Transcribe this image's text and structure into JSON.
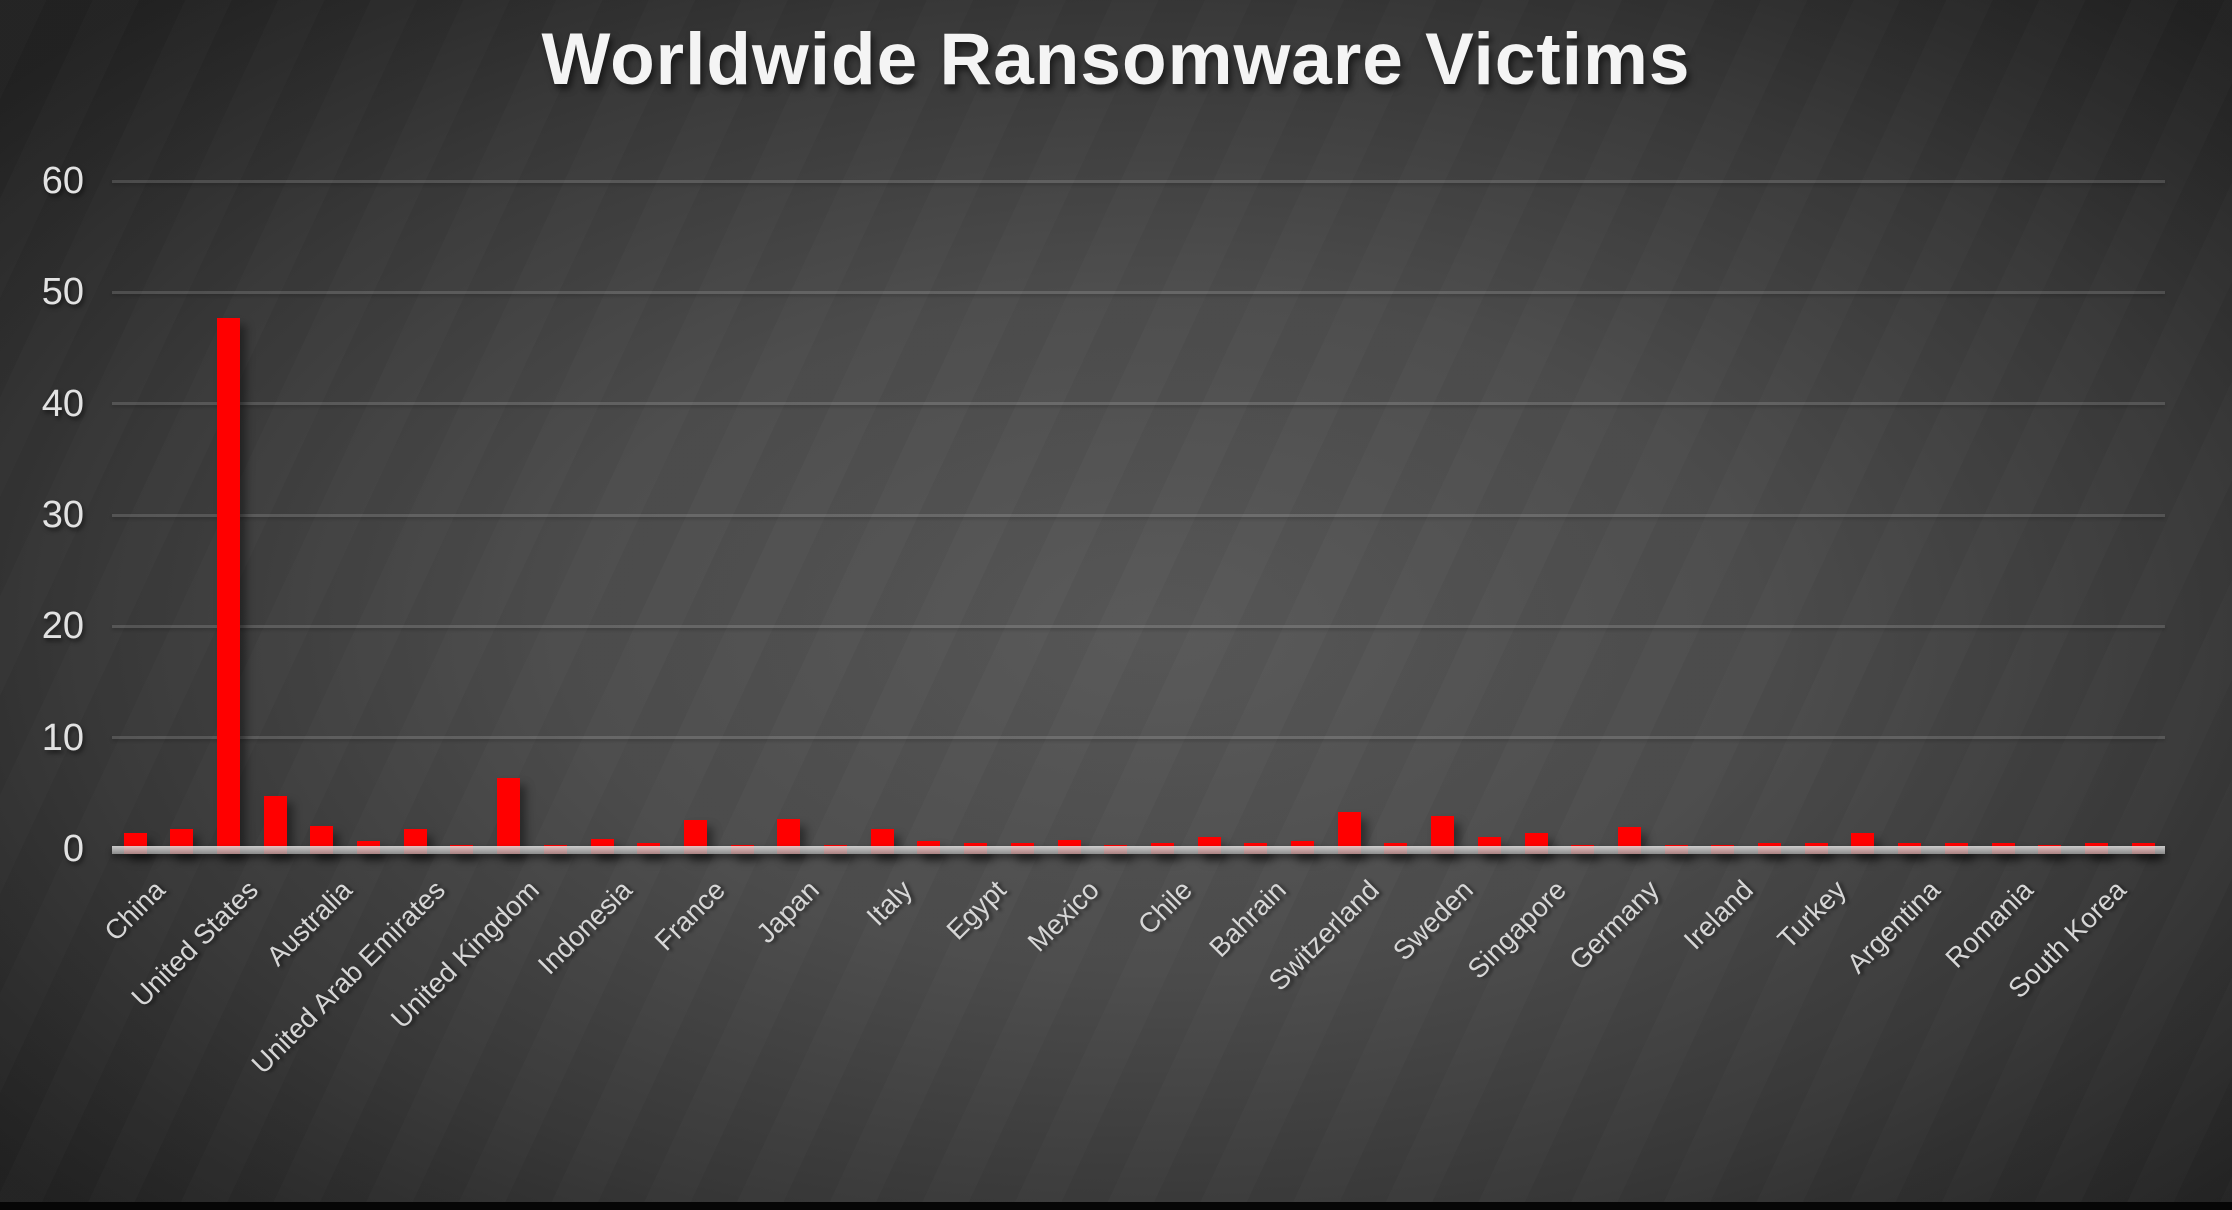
{
  "chart_data": {
    "type": "bar",
    "title": "Worldwide Ransomware Victims",
    "xlabel": "",
    "ylabel": "",
    "ylim": [
      0,
      60
    ],
    "yticks": [
      0,
      10,
      20,
      30,
      40,
      50,
      60
    ],
    "grid": true,
    "legend": false,
    "bar_color": "#FF0000",
    "note": "category axis labels are shown for every other bar only",
    "categories": [
      "China",
      "",
      "United States",
      "",
      "Australia",
      "",
      "United Arab Emirates",
      "",
      "United Kingdom",
      "",
      "Indonesia",
      "",
      "France",
      "",
      "Japan",
      "",
      "Italy",
      "",
      "Egypt",
      "",
      "Mexico",
      "",
      "Chile",
      "",
      "Bahrain",
      "",
      "Switzerland",
      "",
      "Sweden",
      "",
      "Singapore",
      "",
      "Germany",
      "",
      "Ireland",
      "",
      "Turkey",
      "",
      "Argentina",
      "",
      "Romania",
      "",
      "South Korea",
      ""
    ],
    "values": [
      1.4,
      1.8,
      47.7,
      4.8,
      2.1,
      0.7,
      1.8,
      0.4,
      6.4,
      0.4,
      0.9,
      0.5,
      2.6,
      0.4,
      2.7,
      0.4,
      1.8,
      0.7,
      0.5,
      0.5,
      0.8,
      0.4,
      0.5,
      1.1,
      0.5,
      0.7,
      3.3,
      0.5,
      3.0,
      1.1,
      1.4,
      0.4,
      2.0,
      0.4,
      0.4,
      0.5,
      0.5,
      1.4,
      0.5,
      0.5,
      0.5,
      0.4,
      0.5,
      0.5
    ]
  },
  "theme": {
    "background_dark": "#282828",
    "background_light": "#585858",
    "title_color": "#F4F4F4",
    "tick_label_color": "#D9D9D9",
    "gridline_color": "#6B6B6B",
    "axis_line_color": "#A6A6A6",
    "bar_color": "#FF0000",
    "bottom_strip_color": "#060606"
  }
}
